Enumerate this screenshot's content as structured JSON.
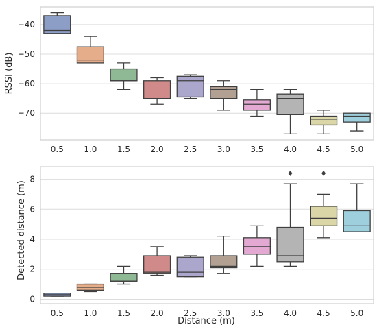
{
  "chart_data": [
    {
      "type": "box",
      "xlabel": "",
      "ylabel": "RSSI (dB)",
      "categories": [
        "0.5",
        "1.0",
        "1.5",
        "2.0",
        "2.5",
        "3.0",
        "3.5",
        "4.0",
        "4.5",
        "5.0"
      ],
      "yticks": [
        "−40",
        "−50",
        "−60",
        "−70"
      ],
      "ytick_values": [
        -40,
        -50,
        -60,
        -70
      ],
      "ylim": [
        -79,
        -34
      ],
      "grid": "horizontal",
      "boxes": [
        {
          "whislo": -43,
          "q1": -43,
          "med": -42,
          "q3": -37,
          "whishi": -36,
          "color": "#8c9dc6"
        },
        {
          "whislo": -53,
          "q1": -53,
          "med": -52,
          "q3": -47.5,
          "whishi": -44,
          "color": "#e6ad8a"
        },
        {
          "whislo": -62,
          "q1": -59,
          "med": -59,
          "q3": -55,
          "whishi": -53,
          "color": "#8fb995"
        },
        {
          "whislo": -67,
          "q1": -65,
          "med": -65,
          "q3": -59,
          "whishi": -58,
          "color": "#d08a8a"
        },
        {
          "whislo": -65,
          "q1": -64.5,
          "med": -59,
          "q3": -57.5,
          "whishi": -57,
          "color": "#aba6cc"
        },
        {
          "whislo": -69,
          "q1": -65,
          "med": -62,
          "q3": -61,
          "whishi": -59,
          "color": "#b2a092"
        },
        {
          "whislo": -71,
          "q1": -69,
          "med": -67,
          "q3": -65.5,
          "whishi": -62,
          "color": "#e3a9d3"
        },
        {
          "whislo": -77,
          "q1": -70.5,
          "med": -65,
          "q3": -63.5,
          "whishi": -62,
          "color": "#b4b4b4"
        },
        {
          "whislo": -77,
          "q1": -74,
          "med": -72,
          "q3": -71,
          "whishi": -69,
          "color": "#dbd6a8"
        },
        {
          "whislo": -76,
          "q1": -73,
          "med": -71,
          "q3": -70,
          "whishi": -70,
          "color": "#9ecfdd"
        }
      ]
    },
    {
      "type": "box",
      "xlabel": "Distance (m)",
      "ylabel": "Detected distance (m)",
      "categories": [
        "0.5",
        "1.0",
        "1.5",
        "2.0",
        "2.5",
        "3.0",
        "3.5",
        "4.0",
        "4.5",
        "5.0"
      ],
      "yticks": [
        "0",
        "2",
        "4",
        "6",
        "8"
      ],
      "ytick_values": [
        0,
        2,
        4,
        6,
        8
      ],
      "ylim": [
        -0.3,
        8.85
      ],
      "grid": "horizontal",
      "boxes": [
        {
          "whislo": 0.2,
          "q1": 0.2,
          "med": 0.3,
          "q3": 0.4,
          "whishi": 0.4,
          "color": "#8c9dc6",
          "fliers": []
        },
        {
          "whislo": 0.5,
          "q1": 0.6,
          "med": 0.8,
          "q3": 1.0,
          "whishi": 1.0,
          "color": "#e6ad8a",
          "fliers": []
        },
        {
          "whislo": 1.0,
          "q1": 1.2,
          "med": 1.2,
          "q3": 1.7,
          "whishi": 2.2,
          "color": "#8fb995",
          "fliers": []
        },
        {
          "whislo": 1.6,
          "q1": 1.7,
          "med": 1.8,
          "q3": 2.9,
          "whishi": 3.5,
          "color": "#d08a8a",
          "fliers": []
        },
        {
          "whislo": 1.5,
          "q1": 1.5,
          "med": 1.8,
          "q3": 2.8,
          "whishi": 2.9,
          "color": "#aba6cc",
          "fliers": []
        },
        {
          "whislo": 1.7,
          "q1": 2.1,
          "med": 2.2,
          "q3": 2.9,
          "whishi": 4.2,
          "color": "#b2a092",
          "fliers": []
        },
        {
          "whislo": 2.2,
          "q1": 3.0,
          "med": 3.5,
          "q3": 4.1,
          "whishi": 4.9,
          "color": "#e3a9d3",
          "fliers": []
        },
        {
          "whislo": 2.2,
          "q1": 2.5,
          "med": 2.9,
          "q3": 4.8,
          "whishi": 7.7,
          "color": "#b4b4b4",
          "fliers": [
            8.4
          ]
        },
        {
          "whislo": 4.1,
          "q1": 4.9,
          "med": 5.4,
          "q3": 6.2,
          "whishi": 7.0,
          "color": "#dbd6a8",
          "fliers": [
            8.4
          ]
        },
        {
          "whislo": 4.5,
          "q1": 4.5,
          "med": 4.9,
          "q3": 5.9,
          "whishi": 7.7,
          "color": "#9ecfdd",
          "fliers": []
        }
      ]
    }
  ]
}
